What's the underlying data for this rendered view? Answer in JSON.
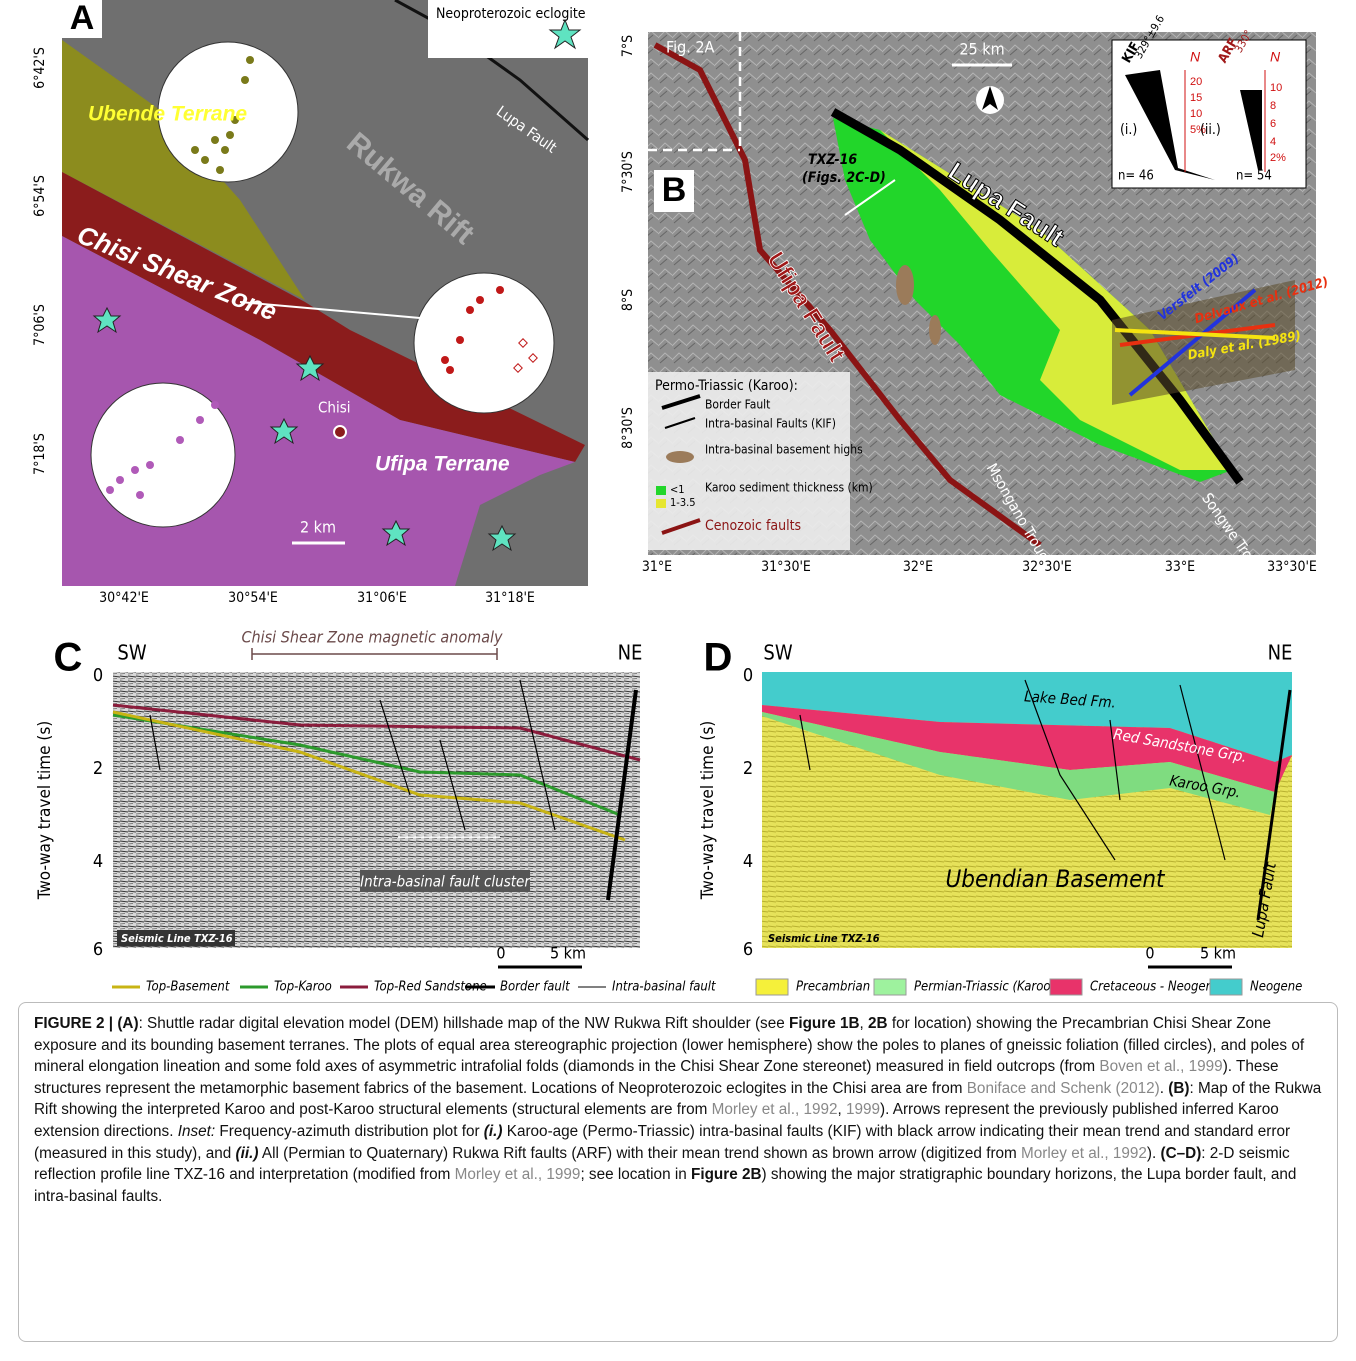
{
  "panel_a": {
    "label": "A",
    "legend": "Neoproterozoic eclogite",
    "ubende": "Ubende Terrane",
    "chisi_zone": "Chisi Shear Zone",
    "rift": "Rukwa Rift",
    "fault": "Lupa Fault",
    "town": "Chisi",
    "ufipa": "Ufipa Terrane",
    "scale": "2 km",
    "lat": [
      "6°42'S",
      "6°54'S",
      "7°06'S",
      "7°18'S"
    ],
    "lon": [
      "30°42'E",
      "30°54'E",
      "31°06'E",
      "31°18'E"
    ]
  },
  "panel_b": {
    "label": "B",
    "fig_ref": "Fig. 2A",
    "scale": "25 km",
    "profile": "TXZ-16",
    "profile_ref": "(Figs. 2C-D)",
    "lupa": "Lupa Fault",
    "ufipa": "Ufipa Fault",
    "msongano": "Msongano Trough",
    "songwe": "Songwe Trough",
    "arrows": [
      "Versfelt (2009)",
      "Delvaux et al. (2012)",
      "Daly et al. (1989)"
    ],
    "lat": [
      "7°S",
      "7°30'S",
      "8°S",
      "8°30'S"
    ],
    "lon": [
      "31°E",
      "31°30'E",
      "32°E",
      "32°30'E",
      "33°E",
      "33°30'E"
    ],
    "legend": {
      "title": "Permo-Triassic (Karoo):",
      "items": [
        "Border Fault",
        "Intra-basinal Faults (KIF)",
        "Intra-basinal basement highs",
        "Karoo sediment thickness (km)",
        "Cenozoic faults"
      ],
      "thickness": [
        "<1",
        "1-3.5"
      ]
    },
    "inset": {
      "kif": {
        "name": "KIF",
        "trend": "329°±9.6",
        "north": "N",
        "scale": [
          "20",
          "15",
          "10",
          "5%"
        ],
        "tag": "(i.)",
        "n": "n= 46"
      },
      "arf": {
        "name": "ARF",
        "trend": "330°",
        "north": "N",
        "scale": [
          "10",
          "8",
          "6",
          "4",
          "2%"
        ],
        "tag": "(ii.)",
        "n": "n= 54"
      }
    }
  },
  "panel_c": {
    "label": "C",
    "sw": "SW",
    "ne": "NE",
    "anomaly": "Chisi Shear Zone magnetic anomaly",
    "cluster": "Intra-basinal fault cluster",
    "line": "Seismic Line TXZ-16",
    "ylabel": "Two-way travel time (s)",
    "yticks": [
      "0",
      "2",
      "4",
      "6"
    ],
    "scale": [
      "0",
      "5 km"
    ],
    "legend": [
      "Top-Basement",
      "Top-Karoo",
      "Top-Red Sandstone",
      "Border fault",
      "Intra-basinal fault"
    ]
  },
  "panel_d": {
    "label": "D",
    "sw": "SW",
    "ne": "NE",
    "units": [
      "Lake Bed Fm.",
      "Red Sandstone Grp.",
      "Karoo Grp.",
      "Ubendian Basement"
    ],
    "fault": "Lupa Fault",
    "line": "Seismic Line TXZ-16",
    "ylabel": "Two-way travel time (s)",
    "yticks": [
      "0",
      "2",
      "4",
      "6"
    ],
    "scale": [
      "0",
      "5 km"
    ],
    "legend": [
      "Precambrian",
      "Permian-Triassic (Karoo)",
      "Cretaceous - Neogene",
      "Neogene"
    ]
  },
  "caption": [
    "FIGURE 2 | (A)",
    ": Shuttle radar digital elevation model (DEM) hillshade map of the NW Rukwa Rift shoulder (see ",
    "Figure 1B",
    ", ",
    "2B",
    " for location) showing the Precambrian Chisi Shear Zone exposure and its bounding basement terranes. The plots of equal area stereographic projection (lower hemisphere) show the poles to planes of gneissic foliation (filled circles), and poles of mineral elongation lineation and some fold axes of asymmetric intrafolial folds (diamonds in the Chisi Shear Zone stereonet) measured in field outcrops (from ",
    "Boven et al., 1999",
    "). These structures represent the metamorphic basement fabrics of the basement. Locations of Neoproterozoic eclogites in the Chisi area are from ",
    "Boniface and Schenk (2012)",
    ". ",
    "(B)",
    ": Map of the Rukwa Rift showing the interpreted Karoo and post-Karoo structural elements (structural elements are from ",
    "Morley et al., 1992",
    ", ",
    "1999",
    "). Arrows represent the previously published inferred Karoo extension directions. ",
    "Inset:",
    " Frequency-azimuth distribution plot for ",
    "(i.)",
    " Karoo-age (Permo-Triassic) intra-basinal faults (KIF) with black arrow indicating their mean trend and standard error (measured in this study), and ",
    "(ii.)",
    " All (Permian to Quaternary) Rukwa Rift faults (ARF) with their mean trend shown as brown arrow (digitized from ",
    "Morley et al., 1992",
    "). ",
    "(C–D)",
    ": 2-D seismic reflection profile line TXZ-16 and interpretation (modified from ",
    "Morley et al., 1999",
    "; see location in ",
    "Figure 2B",
    ") showing the major stratigraphic boundary horizons, the Lupa border fault, and intra-basinal faults."
  ]
}
